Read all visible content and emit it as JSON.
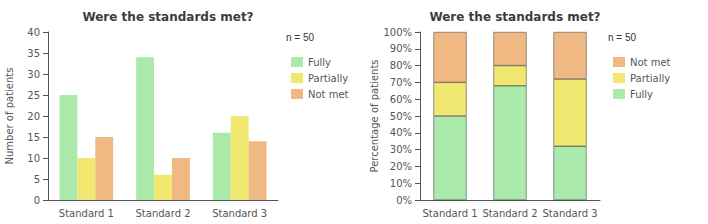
{
  "chart_data": [
    {
      "type": "bar",
      "title": "Were the standards met?",
      "annotation": "n = 50",
      "ylabel": "Number of patients",
      "categories": [
        "Standard 1",
        "Standard 2",
        "Standard 3"
      ],
      "series": [
        {
          "name": "Fully",
          "color": "#abeaab",
          "values": [
            25,
            34,
            16
          ]
        },
        {
          "name": "Partially",
          "color": "#f0e870",
          "values": [
            10,
            6,
            20
          ]
        },
        {
          "name": "Not met",
          "color": "#f0b882",
          "values": [
            15,
            10,
            14
          ]
        }
      ],
      "ylim": [
        0,
        40
      ],
      "yticks": [
        0,
        5,
        10,
        15,
        20,
        25,
        30,
        35,
        40
      ],
      "grid": false,
      "legend": "right"
    },
    {
      "type": "bar",
      "title": "Were the standards met?",
      "annotation": "n = 50",
      "ylabel": "Percentage of patients",
      "stacked": true,
      "categories": [
        "Standard 1",
        "Standard 2",
        "Standard 3"
      ],
      "series": [
        {
          "name": "Fully",
          "color": "#abeaab",
          "values": [
            50,
            68,
            32
          ]
        },
        {
          "name": "Partially",
          "color": "#f0e870",
          "values": [
            20,
            12,
            40
          ]
        },
        {
          "name": "Not met",
          "color": "#f0b882",
          "values": [
            30,
            20,
            28
          ]
        }
      ],
      "ylim": [
        0,
        100
      ],
      "yticks": [
        {
          "value": 0,
          "label": "0%"
        },
        {
          "value": 10,
          "label": "10%"
        },
        {
          "value": 20,
          "label": "20%"
        },
        {
          "value": 30,
          "label": "30%"
        },
        {
          "value": 40,
          "label": "40%"
        },
        {
          "value": 50,
          "label": "50%"
        },
        {
          "value": 60,
          "label": "60%"
        },
        {
          "value": 70,
          "label": "70%"
        },
        {
          "value": 80,
          "label": "80%"
        },
        {
          "value": 90,
          "label": "90%"
        },
        {
          "value": 100,
          "label": "100%"
        }
      ],
      "grid": false,
      "legend": "right"
    }
  ]
}
